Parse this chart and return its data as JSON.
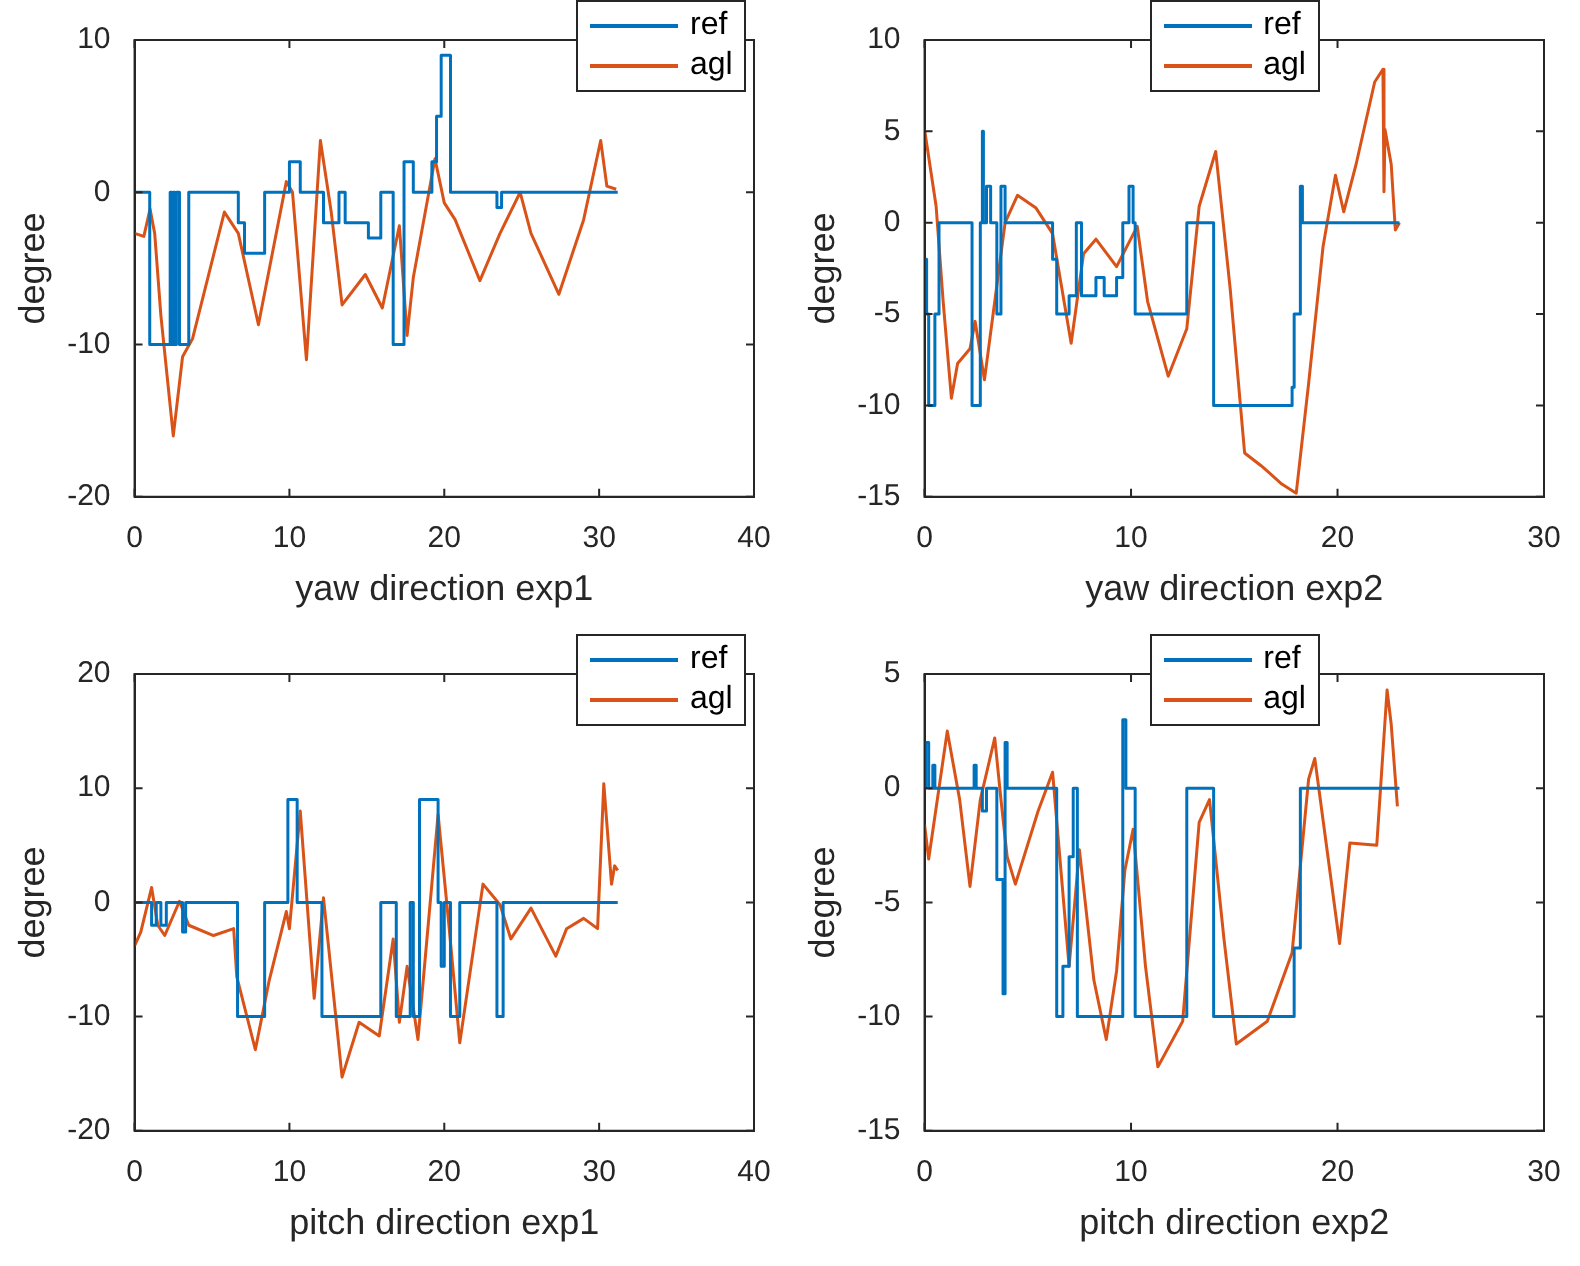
{
  "chart_data": [
    {
      "type": "line",
      "xlabel": "yaw direction exp1",
      "ylabel": "degree",
      "xlim": [
        0,
        40
      ],
      "xticks": [
        0,
        10,
        20,
        30,
        40
      ],
      "ylim": [
        -20,
        10
      ],
      "yticks": [
        -20,
        -10,
        0,
        10
      ],
      "legend": "top right",
      "series": [
        {
          "name": "ref",
          "type": "step",
          "color": "#0072bd",
          "x": [
            0,
            0.98,
            2.3,
            2.4,
            2.5,
            2.6,
            2.7,
            2.9,
            3.5,
            6.7,
            7.1,
            8.4,
            10.0,
            10.7,
            12.2,
            13.2,
            13.6,
            15.1,
            15.9,
            16.7,
            17.4,
            18.0,
            19.2,
            19.5,
            19.8,
            20.4,
            23.4,
            23.7,
            31.2
          ],
          "values": [
            0,
            -10,
            0,
            -10,
            0,
            -10,
            0,
            -10,
            0,
            -2,
            -4,
            0,
            2,
            0,
            -2,
            0,
            -2,
            -3,
            0,
            -10,
            2,
            0,
            2,
            5,
            9,
            0,
            -1,
            0,
            0
          ]
        },
        {
          "name": "agl",
          "type": "line",
          "color": "#d95319",
          "x": [
            0,
            0.6,
            1.0,
            1.3,
            1.7,
            2.5,
            3.1,
            3.75,
            5.8,
            6.7,
            8.0,
            9.8,
            10.2,
            11.1,
            12.0,
            12.7,
            13.4,
            14.9,
            16.0,
            17.1,
            17.6,
            18.0,
            19.4,
            20.0,
            20.7,
            22.3,
            23.6,
            24.9,
            25.6,
            27.4,
            29.0,
            30.1,
            30.5,
            31.1
          ],
          "values": [
            -2.7,
            -2.9,
            -1.1,
            -2.7,
            -8.1,
            -16,
            -10.8,
            -9.6,
            -1.3,
            -2.7,
            -8.7,
            0.7,
            0,
            -11,
            3.4,
            -1.3,
            -7.4,
            -5.4,
            -7.6,
            -2.2,
            -9.4,
            -5.6,
            2.2,
            -0.7,
            -1.8,
            -5.8,
            -2.7,
            0,
            -2.7,
            -6.7,
            -1.8,
            3.4,
            0.4,
            0.2
          ]
        }
      ]
    },
    {
      "type": "line",
      "xlabel": "yaw direction exp2",
      "ylabel": "degree",
      "xlim": [
        0,
        30
      ],
      "xticks": [
        0,
        10,
        20,
        30
      ],
      "ylim": [
        -15,
        10
      ],
      "yticks": [
        -15,
        -10,
        -5,
        0,
        5,
        10
      ],
      "legend": "top",
      "series": [
        {
          "name": "ref",
          "type": "step",
          "color": "#0072bd",
          "x": [
            0,
            0.1,
            0.2,
            0.5,
            0.7,
            2.3,
            2.7,
            2.8,
            2.85,
            3.0,
            3.2,
            3.5,
            3.7,
            3.9,
            6.2,
            6.4,
            7.0,
            7.35,
            7.6,
            8.3,
            8.7,
            9.3,
            9.6,
            9.9,
            10.1,
            10.2,
            12.7,
            14.0,
            17.8,
            17.9,
            18.2,
            18.3,
            23.0
          ],
          "values": [
            -2,
            -5,
            -10,
            -5,
            0,
            -10,
            0,
            5,
            0,
            2,
            0,
            -5,
            2,
            0,
            -2,
            -5,
            -4,
            0,
            -4,
            -3,
            -4,
            -3,
            0,
            2,
            0,
            -5,
            0,
            -10,
            -9,
            -5,
            2,
            0,
            0
          ]
        },
        {
          "name": "agl",
          "type": "line",
          "color": "#d95319",
          "x": [
            0,
            0.56,
            0.9,
            1.3,
            1.6,
            2.2,
            2.45,
            2.9,
            3.9,
            4.5,
            5.4,
            6.2,
            7.1,
            7.7,
            8.3,
            9.3,
            10.3,
            10.8,
            11.8,
            12.7,
            13.3,
            14.1,
            14.8,
            15.5,
            16.3,
            17.3,
            18.0,
            18.6,
            19.3,
            19.9,
            20.3,
            20.9,
            21.8,
            22.2,
            22.25,
            22.3,
            22.6,
            22.8,
            23.0
          ],
          "values": [
            5.1,
            0.9,
            -4.3,
            -9.6,
            -7.7,
            -6.9,
            -5.4,
            -8.6,
            0,
            1.5,
            0.8,
            -0.6,
            -6.6,
            -1.7,
            -0.9,
            -2.4,
            -0.2,
            -4.3,
            -8.4,
            -5.8,
            0.9,
            3.9,
            -3.6,
            -12.6,
            -13.3,
            -14.3,
            -14.8,
            -8.8,
            -1.3,
            2.6,
            0.6,
            3.2,
            7.7,
            8.4,
            1.7,
            5.1,
            3.2,
            -0.4,
            0
          ]
        }
      ]
    },
    {
      "type": "line",
      "xlabel": "pitch direction exp1",
      "ylabel": "degree",
      "xlim": [
        0,
        40
      ],
      "xticks": [
        0,
        10,
        20,
        30,
        40
      ],
      "ylim": [
        -20,
        20
      ],
      "yticks": [
        -20,
        -10,
        0,
        10,
        20
      ],
      "legend": "top right",
      "series": [
        {
          "name": "ref",
          "type": "step",
          "color": "#0072bd",
          "x": [
            0,
            1.1,
            1.4,
            1.7,
            2.05,
            3.1,
            3.3,
            6.65,
            8.4,
            9.9,
            10.5,
            12.1,
            15.9,
            16.9,
            17.8,
            18.0,
            18.4,
            19.6,
            19.8,
            20.0,
            20.4,
            21.0,
            23.4,
            23.8,
            31.2
          ],
          "values": [
            0,
            -2,
            0,
            -2,
            0,
            -2.6,
            0,
            -10,
            0,
            9,
            0,
            -10,
            0,
            -10,
            0,
            -10,
            9,
            0,
            -5.6,
            0,
            -10,
            0,
            -10,
            0,
            0
          ]
        },
        {
          "name": "agl",
          "type": "line",
          "color": "#d95319",
          "x": [
            0,
            0.4,
            1.1,
            1.5,
            1.95,
            2.9,
            3.5,
            5.1,
            6.4,
            6.6,
            7.8,
            8.7,
            9.8,
            10.0,
            10.7,
            11.6,
            12.2,
            13.4,
            14.5,
            15.8,
            16.7,
            17.1,
            17.6,
            18.3,
            19.6,
            20.3,
            21.0,
            22.5,
            23.6,
            24.3,
            25.6,
            27.2,
            27.9,
            29.0,
            29.9,
            30.3,
            30.8,
            31.0,
            31.2
          ],
          "values": [
            -3.8,
            -2.6,
            1.3,
            -2,
            -2.9,
            0.1,
            -2,
            -2.9,
            -2.3,
            -6.5,
            -12.9,
            -6.8,
            -0.8,
            -2.3,
            8,
            -8.4,
            0.4,
            -15.3,
            -10.5,
            -11.7,
            -3.2,
            -10.5,
            -5.6,
            -12,
            7.7,
            -2,
            -12.3,
            1.6,
            -0.2,
            -3.2,
            -0.5,
            -4.7,
            -2.3,
            -1.4,
            -2.3,
            10.4,
            1.6,
            3.2,
            2.8
          ]
        }
      ]
    },
    {
      "type": "line",
      "xlabel": "pitch direction exp2",
      "ylabel": "degree",
      "xlim": [
        0,
        30
      ],
      "xticks": [
        0,
        10,
        20,
        30
      ],
      "ylim": [
        -15,
        5
      ],
      "yticks": [
        -15,
        -10,
        -5,
        0,
        5
      ],
      "legend": "top",
      "series": [
        {
          "name": "ref",
          "type": "step",
          "color": "#0072bd",
          "x": [
            0,
            0.05,
            0.2,
            0.4,
            0.5,
            2.4,
            2.5,
            2.8,
            3.0,
            3.5,
            3.8,
            3.9,
            4.0,
            6.4,
            6.7,
            7.0,
            7.2,
            7.4,
            9.6,
            9.75,
            10.2,
            12.7,
            14.0,
            17.9,
            18.2,
            23.0
          ],
          "values": [
            0,
            2,
            0,
            1,
            0,
            1,
            0,
            -1,
            0,
            -4,
            -9,
            2,
            0,
            -10,
            -7.8,
            -3,
            0,
            -10,
            3,
            0,
            -10,
            0,
            -10,
            -7,
            0,
            0
          ]
        },
        {
          "name": "agl",
          "type": "line",
          "color": "#d95319",
          "x": [
            0,
            0.2,
            1.1,
            1.7,
            2.2,
            2.7,
            3.4,
            3.7,
            4.0,
            4.4,
            5.5,
            6.2,
            7.0,
            7.5,
            8.2,
            8.8,
            9.3,
            9.7,
            10.1,
            10.7,
            11.3,
            12.5,
            13.3,
            13.8,
            14.5,
            15.1,
            16.6,
            17.8,
            18.6,
            18.9,
            20.1,
            20.6,
            21.9,
            22.4,
            22.6,
            22.9
          ],
          "values": [
            -1.6,
            -3.1,
            2.5,
            -0.5,
            -4.3,
            -0.5,
            2.2,
            -0.5,
            -3,
            -4.2,
            -1,
            0.7,
            -7.8,
            -2.7,
            -8.4,
            -11,
            -8,
            -3.6,
            -1.8,
            -7.8,
            -12.2,
            -10.2,
            -1.5,
            -0.5,
            -6.6,
            -11.2,
            -10.2,
            -7.2,
            0.4,
            1.3,
            -6.8,
            -2.4,
            -2.5,
            4.3,
            2.8,
            -0.8
          ]
        }
      ]
    }
  ]
}
